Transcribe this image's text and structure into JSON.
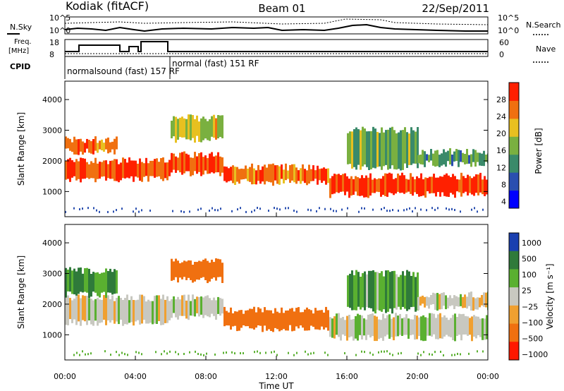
{
  "header": {
    "station": "Kodiak (fitACF)",
    "beam": "Beam 01",
    "date": "22/Sep/2011"
  },
  "summary": {
    "nsky_label": "N.Sky",
    "nsearch_label": "N.Search",
    "noise_ticks": [
      "10^5",
      "10^0"
    ],
    "freq_label_1": "Freq.",
    "freq_label_2": "[MHz]",
    "freq_ticks": [
      "18",
      "8"
    ],
    "nave_label": "Nave",
    "nave_ticks": [
      "60",
      "0"
    ],
    "cpid_label": "CPID",
    "cpid_segments": [
      {
        "label": "normalsound (fast) 157 RF",
        "start_hour": 0,
        "end_hour": 6.1
      },
      {
        "label": "normal (fast) 151 RF",
        "start_hour": 6.1,
        "end_hour": 24
      }
    ]
  },
  "colors": {
    "power_scale": [
      "#0000ff",
      "#2a4fb0",
      "#3a8a6a",
      "#7ab040",
      "#e8c020",
      "#f07010",
      "#ff2000"
    ],
    "velocity_scale": [
      "#1a3fb0",
      "#2f7a3a",
      "#5ab030",
      "#c8c8c0",
      "#f0a030",
      "#f07010",
      "#ff1800"
    ],
    "ground_scatter": "#c8c8c0"
  },
  "chart_data": [
    {
      "type": "heatmap",
      "title": "",
      "xlabel": "",
      "ylabel": "Slant Range [km]",
      "xlim": [
        0,
        24
      ],
      "ylim": [
        180,
        4600
      ],
      "yticks": [
        "4000",
        "3000",
        "2000",
        "1000"
      ],
      "colorbar": {
        "label": "Power [dB]",
        "ticks": [
          "28",
          "24",
          "20",
          "16",
          "12",
          "8",
          "4"
        ],
        "range": [
          0,
          30
        ]
      },
      "echo_bands": [
        {
          "start_hour": 0.0,
          "end_hour": 6.0,
          "range_low": 1400,
          "range_high": 2000,
          "power": 26
        },
        {
          "start_hour": 0.0,
          "end_hour": 3.0,
          "range_low": 2300,
          "range_high": 2700,
          "power": 24
        },
        {
          "start_hour": 6.0,
          "end_hour": 9.0,
          "range_low": 1600,
          "range_high": 2200,
          "power": 26
        },
        {
          "start_hour": 6.0,
          "end_hour": 9.0,
          "range_low": 2700,
          "range_high": 3400,
          "power": 18
        },
        {
          "start_hour": 9.0,
          "end_hour": 15.0,
          "range_low": 1300,
          "range_high": 1800,
          "power": 24
        },
        {
          "start_hour": 15.0,
          "end_hour": 24.0,
          "range_low": 900,
          "range_high": 1500,
          "power": 28
        },
        {
          "start_hour": 16.0,
          "end_hour": 20.0,
          "range_low": 1800,
          "range_high": 3000,
          "power": 14
        },
        {
          "start_hour": 20.0,
          "end_hour": 24.0,
          "range_low": 1900,
          "range_high": 2300,
          "power": 12
        }
      ]
    },
    {
      "type": "heatmap",
      "title": "",
      "xlabel": "Time UT",
      "ylabel": "Slant Range [km]",
      "xlim": [
        0,
        24
      ],
      "ylim": [
        180,
        4600
      ],
      "xticks": [
        "00:00",
        "04:00",
        "08:00",
        "12:00",
        "16:00",
        "20:00",
        "00:00"
      ],
      "yticks": [
        "4000",
        "3000",
        "2000",
        "1000"
      ],
      "colorbar": {
        "label": "Velocity [m s⁻¹]",
        "ticks": [
          "1000",
          "500",
          "100",
          "25",
          "−25",
          "−100",
          "−500",
          "−1000"
        ]
      },
      "echo_bands": [
        {
          "start_hour": 0.0,
          "end_hour": 6.0,
          "range_low": 1400,
          "range_high": 2200,
          "velocity": 0
        },
        {
          "start_hour": 0.0,
          "end_hour": 3.0,
          "range_low": 2300,
          "range_high": 3100,
          "velocity": 150
        },
        {
          "start_hour": 6.0,
          "end_hour": 9.0,
          "range_low": 1600,
          "range_high": 2200,
          "velocity": 0
        },
        {
          "start_hour": 6.0,
          "end_hour": 9.0,
          "range_low": 2800,
          "range_high": 3400,
          "velocity": -300
        },
        {
          "start_hour": 9.0,
          "end_hour": 15.0,
          "range_low": 1200,
          "range_high": 1800,
          "velocity": -300
        },
        {
          "start_hour": 15.0,
          "end_hour": 24.0,
          "range_low": 900,
          "range_high": 1600,
          "velocity": 0
        },
        {
          "start_hour": 16.0,
          "end_hour": 20.0,
          "range_low": 1800,
          "range_high": 3000,
          "velocity": 100
        },
        {
          "start_hour": 20.0,
          "end_hour": 24.0,
          "range_low": 1900,
          "range_high": 2300,
          "velocity": 0
        }
      ]
    }
  ]
}
